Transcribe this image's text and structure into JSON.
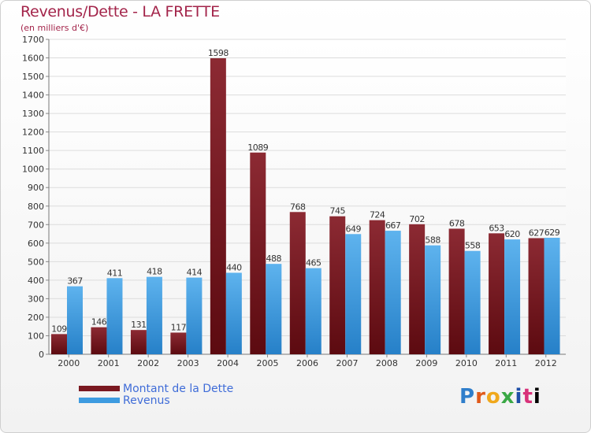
{
  "header": {
    "title": "Revenus/Dette - LA FRETTE",
    "subtitle": "(en milliers d'€)"
  },
  "logo_text": "Proxiti",
  "colors": {
    "debt": "#7a1820",
    "revenue": "#3d9be0",
    "title": "#a3244a",
    "legend_text": "#3f6cd8"
  },
  "chart_data": {
    "type": "bar",
    "title": "Revenus/Dette - LA FRETTE",
    "subtitle": "(en milliers d'€)",
    "categories": [
      "2000",
      "2001",
      "2002",
      "2003",
      "2004",
      "2005",
      "2006",
      "2007",
      "2008",
      "2009",
      "2010",
      "2011",
      "2012"
    ],
    "series": [
      {
        "name": "Montant de la Dette",
        "values": [
          109,
          146,
          131,
          117,
          1598,
          1089,
          768,
          745,
          724,
          702,
          678,
          653,
          627
        ]
      },
      {
        "name": "Revenus",
        "values": [
          367,
          411,
          418,
          414,
          440,
          488,
          465,
          649,
          667,
          588,
          558,
          620,
          629
        ]
      }
    ],
    "ylim": [
      0,
      1700
    ],
    "yticks": [
      0,
      100,
      200,
      300,
      400,
      500,
      600,
      700,
      800,
      900,
      1000,
      1100,
      1200,
      1300,
      1400,
      1500,
      1600,
      1700
    ],
    "grid": true,
    "legend_position": "bottom-left"
  }
}
